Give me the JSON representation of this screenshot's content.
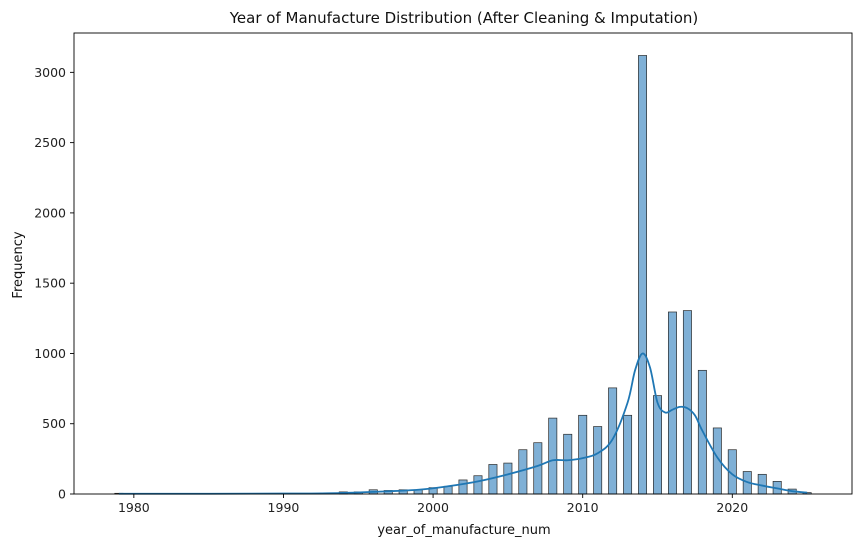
{
  "chart_data": {
    "type": "bar",
    "subtype": "histogram-with-kde",
    "title": "Year of Manufacture Distribution (After Cleaning & Imputation)",
    "xlabel": "year_of_manufacture_num",
    "ylabel": "Frequency",
    "xlim": [
      1976,
      2028
    ],
    "ylim": [
      0,
      3280
    ],
    "xticks": [
      1980,
      1990,
      2000,
      2010,
      2020
    ],
    "yticks": [
      0,
      500,
      1000,
      1500,
      2000,
      2500,
      3000
    ],
    "grid": false,
    "legend": "none",
    "colors": {
      "bar_fill": "#7fb0d6",
      "bar_edge": "#2b2b2b",
      "kde_line": "#1f77b4"
    },
    "bin_width": 0.55,
    "series": [
      {
        "x": [
          1979,
          1994,
          1995,
          1996,
          1997,
          1998,
          1999,
          2000,
          2001,
          2002,
          2003,
          2004,
          2005,
          2006,
          2007,
          2008,
          2009,
          2010,
          2011,
          2012,
          2013,
          2014,
          2015,
          2016,
          2017,
          2018,
          2019,
          2020,
          2021,
          2022,
          2023,
          2024,
          2025
        ],
        "values": [
          5,
          15,
          15,
          30,
          25,
          30,
          30,
          45,
          55,
          100,
          130,
          210,
          220,
          315,
          365,
          540,
          425,
          560,
          480,
          755,
          560,
          3120,
          700,
          1295,
          1305,
          880,
          470,
          315,
          160,
          140,
          90,
          35,
          10
        ]
      },
      {
        "x": [
          1979,
          1985,
          1990,
          1993,
          1996,
          1999,
          2001,
          2003,
          2005,
          2007,
          2008,
          2009,
          2010,
          2011,
          2012,
          2013,
          2013.5,
          2014,
          2014.5,
          2015,
          2015.5,
          2016,
          2016.5,
          2017,
          2017.5,
          2018,
          2019,
          2020,
          2021,
          2022,
          2023,
          2024,
          2025
        ],
        "values": [
          2,
          2,
          3,
          5,
          15,
          30,
          55,
          90,
          140,
          200,
          240,
          240,
          255,
          290,
          390,
          650,
          880,
          1000,
          900,
          650,
          580,
          600,
          620,
          610,
          560,
          450,
          260,
          140,
          85,
          60,
          40,
          20,
          10
        ]
      }
    ]
  }
}
